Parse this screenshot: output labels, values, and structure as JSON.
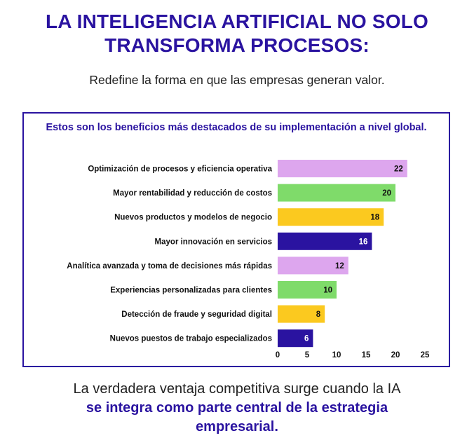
{
  "header": {
    "title": "LA INTELIGENCIA ARTIFICIAL NO SOLO TRANSFORMA PROCESOS:",
    "subtitle": "Redefine la forma en que las empresas generan valor."
  },
  "footer": {
    "lead": "La verdadera ventaja competitiva surge cuando la IA",
    "emphasis": "se integra como parte central de la estrategia empresarial."
  },
  "colors": {
    "primary": "#2a13a0",
    "lilac": "#dda6ee",
    "green": "#7fdb6a",
    "yellow": "#fbc91f",
    "indigo": "#2a13a0"
  },
  "chart_data": {
    "type": "bar",
    "orientation": "horizontal",
    "title": "Estos son los beneficios más destacados de su implementación a nivel global.",
    "categories": [
      "Optimización de procesos y eficiencia operativa",
      "Mayor rentabilidad y reducción de costos",
      "Nuevos productos y modelos de negocio",
      "Mayor innovación en servicios",
      "Analítica avanzada y toma de decisiones más rápidas",
      "Experiencias personalizadas para clientes",
      "Detección de fraude y seguridad digital",
      "Nuevos puestos de trabajo especializados"
    ],
    "values": [
      22,
      20,
      18,
      16,
      12,
      10,
      8,
      6
    ],
    "bar_colors": [
      "#dda6ee",
      "#7fdb6a",
      "#fbc91f",
      "#2a13a0",
      "#dda6ee",
      "#7fdb6a",
      "#fbc91f",
      "#2a13a0"
    ],
    "label_colors": [
      "#111111",
      "#111111",
      "#111111",
      "#ffffff",
      "#111111",
      "#111111",
      "#111111",
      "#ffffff"
    ],
    "xlim": [
      0,
      25
    ],
    "xticks": [
      0,
      5,
      10,
      15,
      20,
      25
    ],
    "xlabel": "",
    "ylabel": ""
  }
}
